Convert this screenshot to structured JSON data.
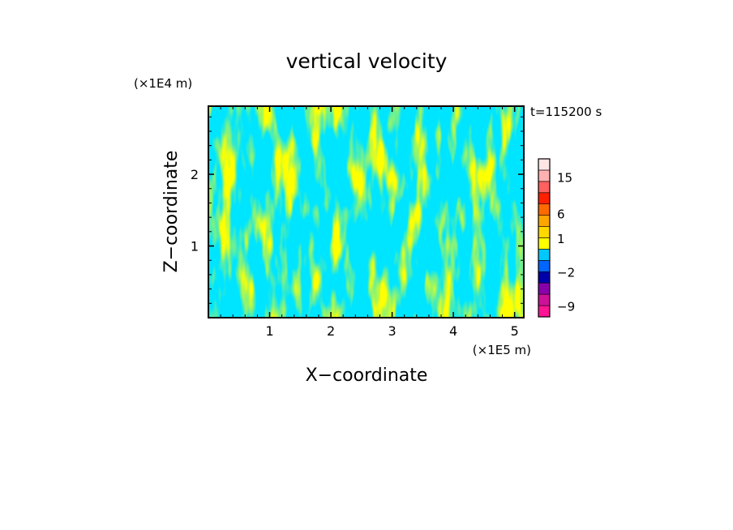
{
  "chart_data": {
    "type": "heatmap",
    "title": "vertical velocity",
    "xlabel": "X−coordinate",
    "ylabel": "Z−coordinate",
    "x_unit": "(×1E5 m)",
    "y_unit": "(×1E4 m)",
    "time_label": "t=115200 s",
    "xlim": [
      0,
      5.15
    ],
    "ylim": [
      0,
      2.95
    ],
    "x_ticks": [
      1,
      2,
      3,
      4,
      5
    ],
    "y_ticks": [
      1,
      2
    ],
    "x_tick_labels": [
      "1",
      "2",
      "3",
      "4",
      "5"
    ],
    "y_tick_labels": [
      "1",
      "2"
    ],
    "field_colors": {
      "positive": "#ffff00",
      "negative": "#00e5ff"
    },
    "colorbar": {
      "levels": [
        {
          "color": "#ff1493"
        },
        {
          "color": "#cc1199"
        },
        {
          "color": "#8800aa"
        },
        {
          "color": "#0000aa"
        },
        {
          "color": "#0066ff"
        },
        {
          "color": "#00c8ff"
        },
        {
          "color": "#ffff00"
        },
        {
          "color": "#ffd800"
        },
        {
          "color": "#ffa500"
        },
        {
          "color": "#ff6a00"
        },
        {
          "color": "#ff2000"
        },
        {
          "color": "#ff6060"
        },
        {
          "color": "#ffb0b0"
        },
        {
          "color": "#ffe4e4"
        }
      ],
      "tick_labels": [
        {
          "text": "−9",
          "level": 0.9
        },
        {
          "text": "−2",
          "level": 3.9
        },
        {
          "text": "1",
          "level": 6.9
        },
        {
          "text": "6",
          "level": 9.1
        },
        {
          "text": "15",
          "level": 12.3
        }
      ]
    }
  }
}
